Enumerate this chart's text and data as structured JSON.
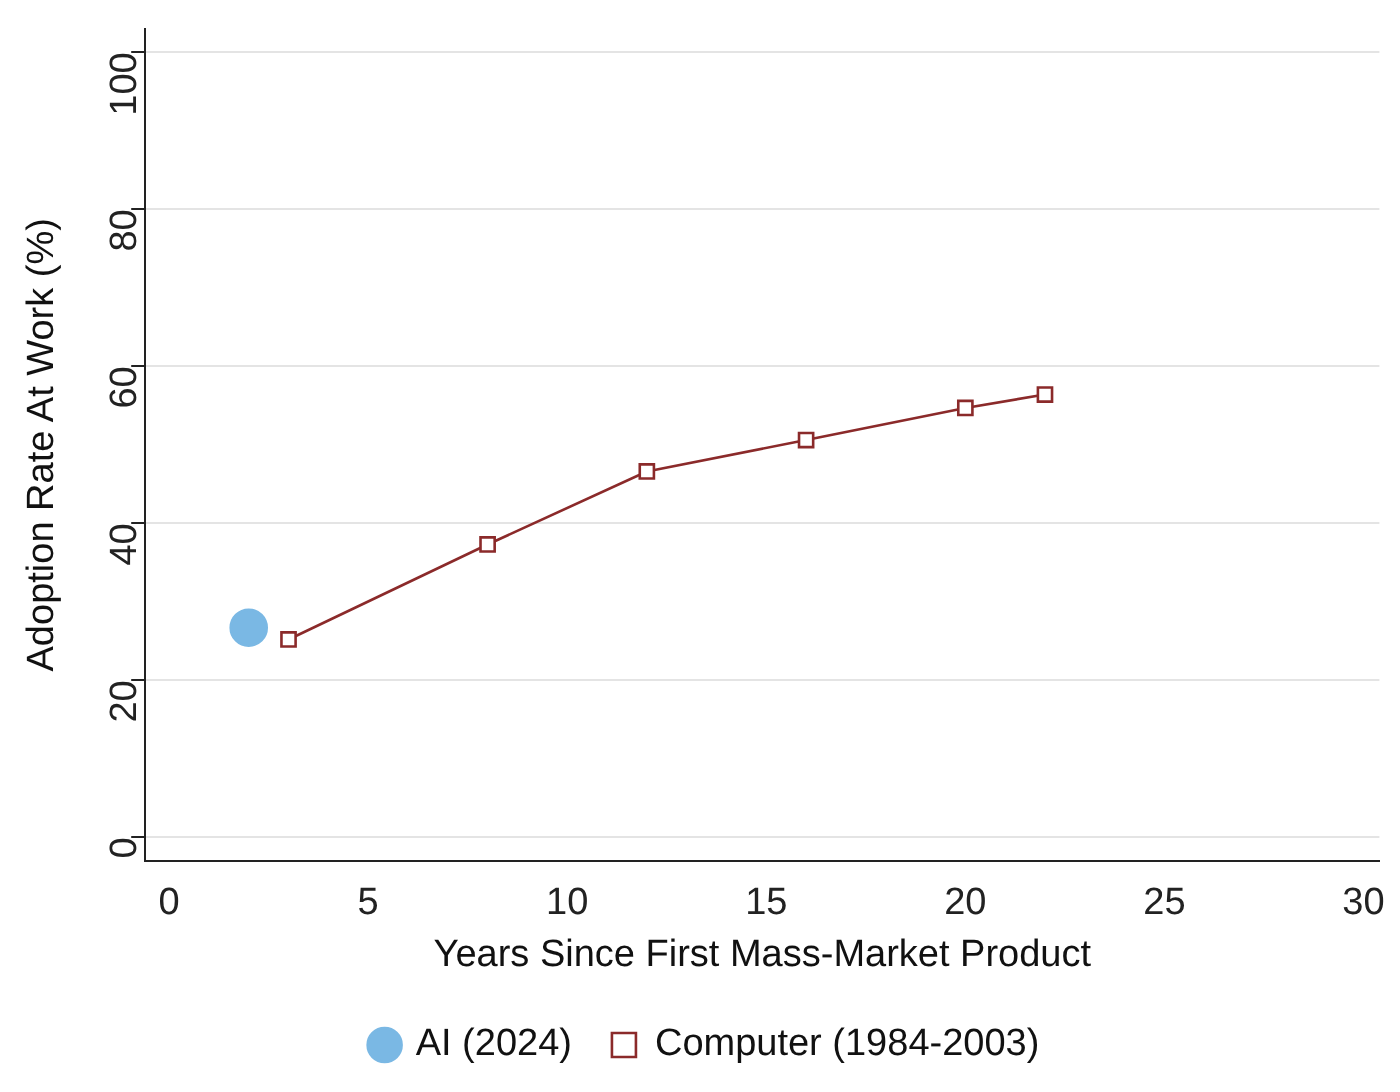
{
  "chart_data": {
    "type": "line",
    "xlabel": "Years Since First Mass-Market Product",
    "ylabel": "Adoption Rate At Work (%)",
    "xlim": [
      -0.6,
      30.4
    ],
    "ylim": [
      -3,
      103
    ],
    "xticks": [
      0,
      5,
      10,
      15,
      20,
      25,
      30
    ],
    "yticks": [
      0,
      20,
      40,
      60,
      80,
      100
    ],
    "grid": "y",
    "legend": "bottom",
    "series": [
      {
        "name": "AI (2024)",
        "type": "scatter",
        "marker": "circle",
        "color": "#7ab8e4",
        "x": [
          2
        ],
        "values": [
          26.7
        ]
      },
      {
        "name": "Computer (1984-2003)",
        "marker": "square",
        "color": "#8b2a2a",
        "x": [
          3,
          8,
          12,
          16,
          20,
          22
        ],
        "values": [
          25.2,
          37.3,
          46.6,
          50.6,
          54.7,
          56.4
        ]
      }
    ]
  }
}
